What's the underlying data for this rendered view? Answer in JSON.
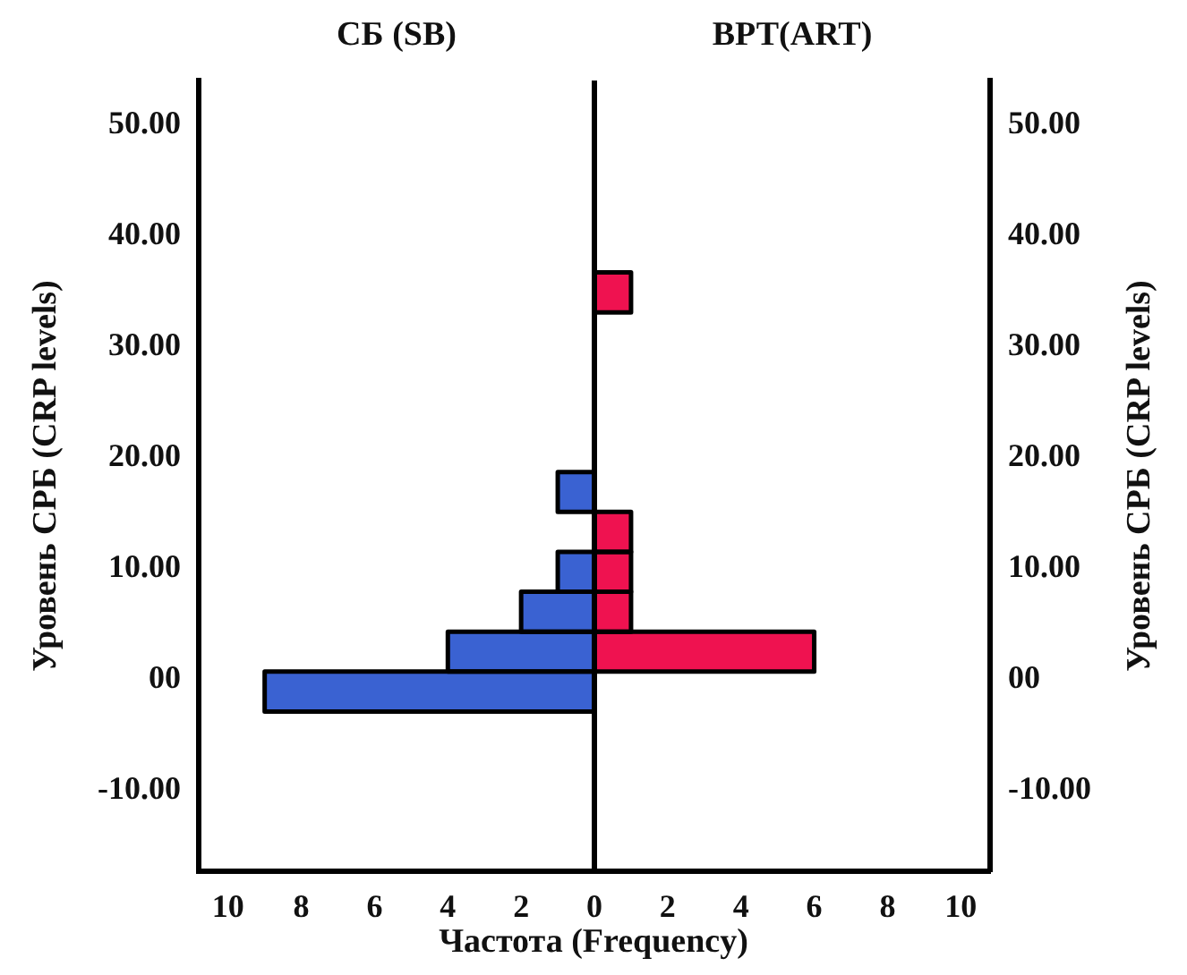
{
  "chart_data": [
    {
      "type": "histogram",
      "orientation": "horizontal",
      "title": "СБ (SB)",
      "xlabel": "Частота (Frequency)",
      "ylabel": "Уровень СРБ (CRP levels)",
      "bins": [
        -2.9,
        0.7,
        4.3,
        7.9,
        11.5,
        15.1,
        18.7,
        22.3,
        25.9,
        29.5,
        33.1,
        36.7
      ],
      "values": [
        9,
        4,
        2,
        1,
        0,
        1,
        0,
        0,
        0,
        0,
        0
      ],
      "color": "#3a62d2",
      "xlim": [
        10.8,
        0
      ],
      "xticks": [
        10,
        8,
        6,
        4,
        2,
        0
      ],
      "ylim": [
        -17.3,
        54
      ],
      "yticks": [
        {
          "value": -10,
          "label": "-10.00"
        },
        {
          "value": 0,
          "label": "00"
        },
        {
          "value": 10,
          "label": "10.00"
        },
        {
          "value": 20,
          "label": "20.00"
        },
        {
          "value": 30,
          "label": "30.00"
        },
        {
          "value": 40,
          "label": "40.00"
        },
        {
          "value": 50,
          "label": "50.00"
        }
      ]
    },
    {
      "type": "histogram",
      "orientation": "horizontal",
      "title": "ВРТ(ART)",
      "ylabel": "Уровень СРБ (CRP levels)",
      "bins": [
        -2.9,
        0.7,
        4.3,
        7.9,
        11.5,
        15.1,
        18.7,
        22.3,
        25.9,
        29.5,
        33.1,
        36.7
      ],
      "values": [
        0,
        6,
        1,
        1,
        1,
        0,
        0,
        0,
        0,
        0,
        1
      ],
      "color": "#ef1250",
      "xlim": [
        0,
        10.8
      ],
      "xticks": [
        2,
        4,
        6,
        8,
        10
      ],
      "ylim": [
        -17.3,
        54
      ],
      "yticks": [
        {
          "value": -10,
          "label": "-10.00"
        },
        {
          "value": 0,
          "label": "00"
        },
        {
          "value": 10,
          "label": "10.00"
        },
        {
          "value": 20,
          "label": "20.00"
        },
        {
          "value": 30,
          "label": "30.00"
        },
        {
          "value": 40,
          "label": "40.00"
        },
        {
          "value": 50,
          "label": "50.00"
        }
      ]
    }
  ]
}
